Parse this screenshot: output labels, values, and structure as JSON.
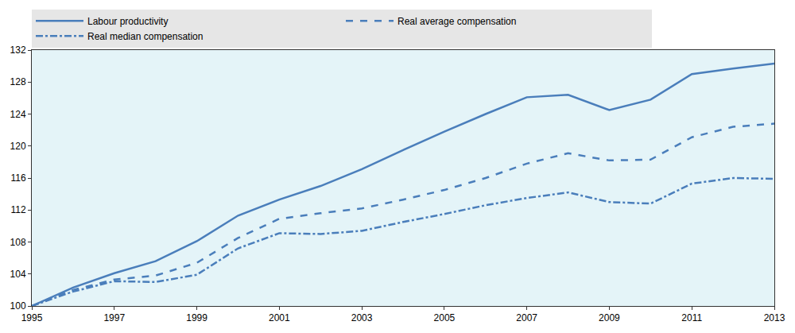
{
  "chart_data": {
    "type": "line",
    "x": [
      1995,
      1996,
      1997,
      1998,
      1999,
      2000,
      2001,
      2002,
      2003,
      2004,
      2005,
      2006,
      2007,
      2008,
      2009,
      2010,
      2011,
      2012,
      2013
    ],
    "series": [
      {
        "name": "Labour productivity",
        "color": "#4a7ebb",
        "line_style": "solid",
        "values": [
          100,
          102.3,
          104.1,
          105.6,
          108.1,
          111.3,
          113.3,
          115.0,
          117.1,
          119.5,
          121.8,
          124.0,
          126.1,
          126.4,
          124.5,
          125.8,
          129.0,
          129.7,
          130.3
        ]
      },
      {
        "name": "Real average compensation",
        "color": "#4a7ebb",
        "line_style": "dash",
        "values": [
          100,
          102.0,
          103.3,
          103.8,
          105.4,
          108.5,
          110.9,
          111.6,
          112.2,
          113.3,
          114.5,
          116.0,
          117.8,
          119.1,
          118.2,
          118.3,
          121.1,
          122.4,
          122.8
        ]
      },
      {
        "name": "Real median compensation",
        "color": "#4a7ebb",
        "line_style": "dashdot",
        "values": [
          100,
          101.8,
          103.1,
          103.0,
          103.9,
          107.2,
          109.1,
          109.0,
          109.4,
          110.5,
          111.5,
          112.6,
          113.5,
          114.2,
          113.0,
          112.8,
          115.3,
          116.0,
          115.9
        ]
      }
    ],
    "xlim": [
      1995,
      2013
    ],
    "xticks": [
      1995,
      1997,
      1999,
      2001,
      2003,
      2005,
      2007,
      2009,
      2011,
      2013
    ],
    "ylim": [
      100,
      132
    ],
    "yticks": [
      100,
      104,
      108,
      112,
      116,
      120,
      124,
      128,
      132
    ],
    "grid": false,
    "legend": "top"
  }
}
